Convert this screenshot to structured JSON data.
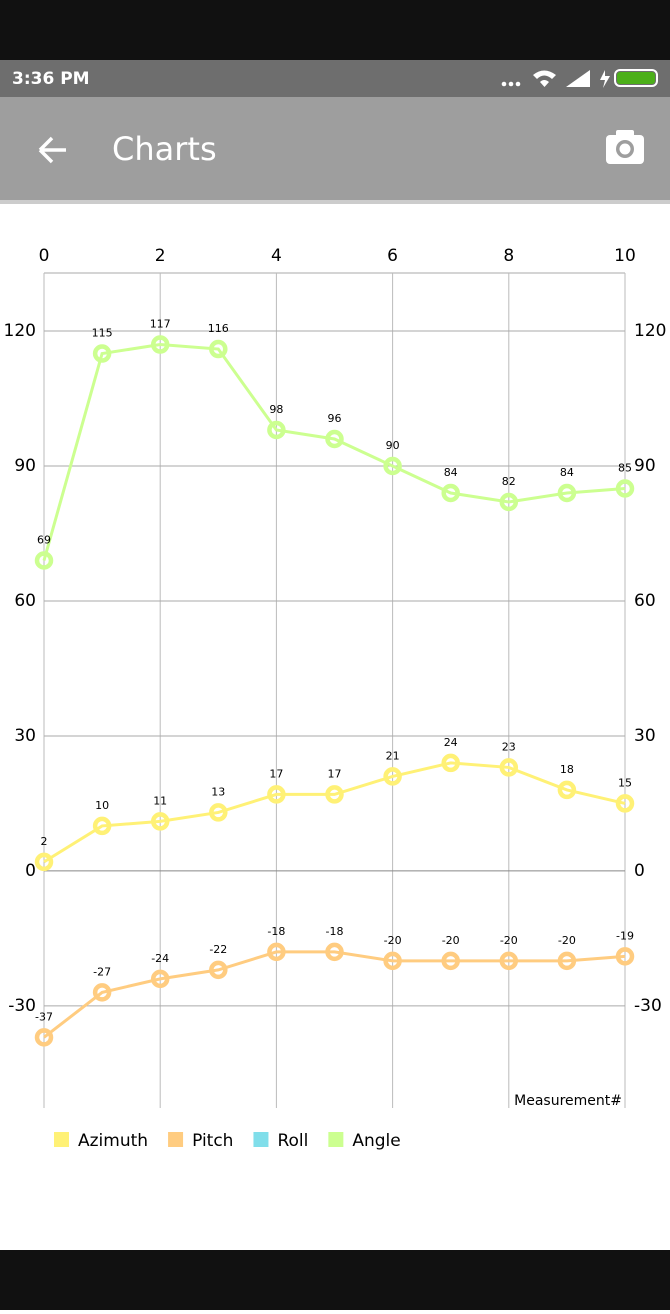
{
  "status_bar": {
    "time": "3:36 PM"
  },
  "app_bar": {
    "title": "Charts"
  },
  "chart_data": {
    "type": "line",
    "x": [
      0,
      1,
      2,
      3,
      4,
      5,
      6,
      7,
      8,
      9,
      10
    ],
    "xlim": [
      0,
      10
    ],
    "xticks": [
      0,
      2,
      4,
      6,
      8,
      10
    ],
    "ylim": [
      -52.7,
      132.9
    ],
    "yticks": [
      -30,
      0,
      30,
      60,
      90,
      120
    ],
    "grid": true,
    "x_label": "Measurement#",
    "legend": "bottom-left",
    "series": [
      {
        "name": "Azimuth",
        "color": "#fff176",
        "values": [
          2,
          10,
          11,
          13,
          17,
          17,
          21,
          24,
          23,
          18,
          15
        ]
      },
      {
        "name": "Pitch",
        "color": "#ffcc80",
        "values": [
          -37,
          -27,
          -24,
          -22,
          -18,
          -18,
          -20,
          -20,
          -20,
          -20,
          -19
        ]
      },
      {
        "name": "Roll",
        "color": "#80deea",
        "values": [
          null,
          null,
          null,
          null,
          null,
          null,
          null,
          null,
          null,
          null,
          null
        ]
      },
      {
        "name": "Angle",
        "color": "#ccff90",
        "values": [
          69,
          115,
          117,
          116,
          98,
          96,
          90,
          84,
          82,
          84,
          85
        ]
      }
    ]
  }
}
